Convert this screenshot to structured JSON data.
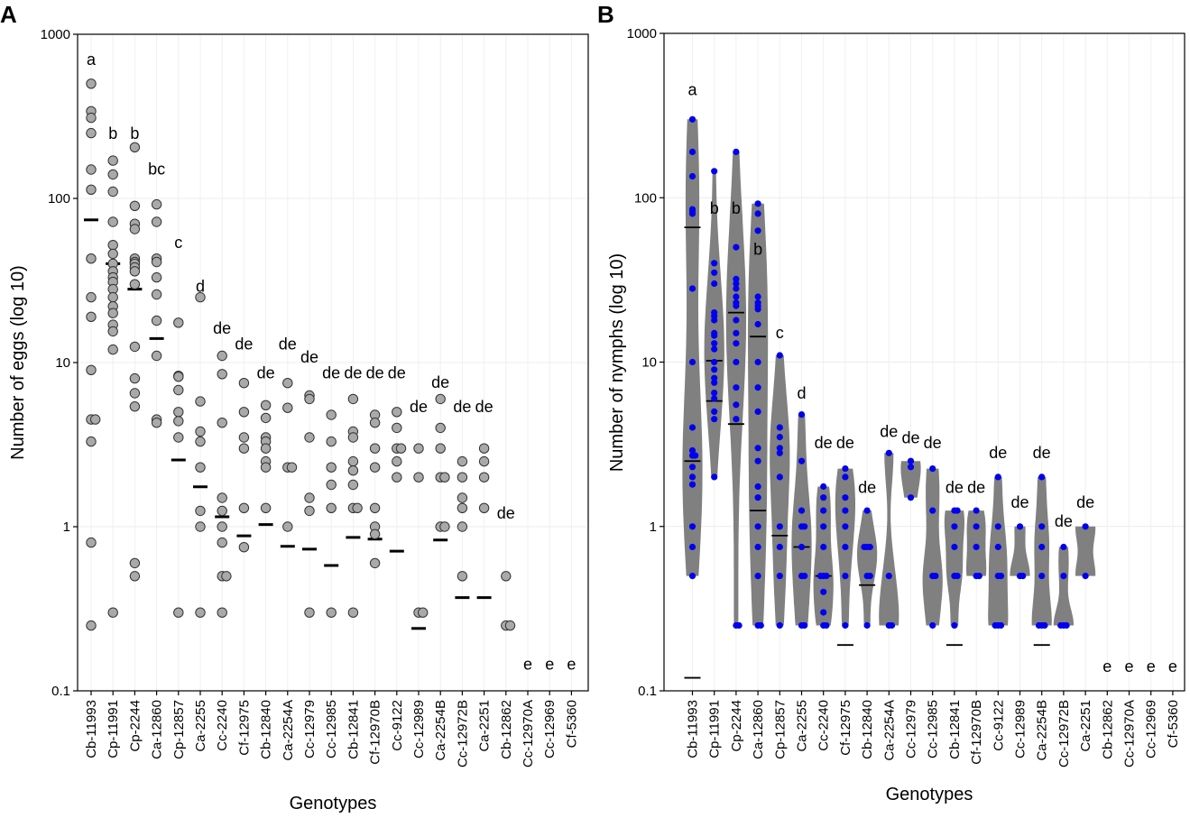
{
  "figure": {
    "panel_a_label": "A",
    "panel_b_label": "B"
  },
  "chart_data": [
    {
      "type": "scatter",
      "panel": "A",
      "ylabel": "Number of eggs (log 10)",
      "xlabel": "Genotypes",
      "yscale": "log10",
      "ylim": [
        0.1,
        1000
      ],
      "yticks": [
        {
          "v": 0.1,
          "label": "0.1"
        },
        {
          "v": 1,
          "label": "1"
        },
        {
          "v": 10,
          "label": "10"
        },
        {
          "v": 100,
          "label": "100"
        },
        {
          "v": 1000,
          "label": "1000"
        }
      ],
      "grid": true,
      "point_color": "#a9a9a9",
      "categories": [
        "Cb-11993",
        "Cp-11991",
        "Cp-2244",
        "Ca-12860",
        "Cp-12857",
        "Ca-2255",
        "Cc-2240",
        "Cf-12975",
        "Cb-12840",
        "Ca-2254A",
        "Cc-12979",
        "Cc-12985",
        "Cb-12841",
        "Cf-12970B",
        "Cc-9122",
        "Cc-12989",
        "Ca-2254B",
        "Cc-12972B",
        "Ca-2251",
        "Cb-12862",
        "Cc-12970A",
        "Cc-12969",
        "Cf-5360"
      ],
      "letters": [
        "a",
        "b",
        "b",
        "bc",
        "c",
        "d",
        "de",
        "de",
        "de",
        "de",
        "de",
        "de",
        "de",
        "de",
        "de",
        "de",
        "de",
        "de",
        "de",
        "de",
        "e",
        "e",
        "e"
      ],
      "letter_y": [
        650,
        230,
        230,
        140,
        50,
        27,
        15,
        12,
        8,
        12,
        10,
        8,
        8,
        8,
        8,
        5,
        7,
        5,
        5,
        1.12,
        0.135,
        0.135,
        0.135
      ],
      "means": [
        74,
        40,
        28,
        14,
        2.55,
        1.75,
        1.15,
        0.88,
        1.03,
        0.76,
        0.73,
        0.58,
        0.86,
        0.84,
        0.71,
        0.24,
        0.83,
        0.37,
        0.37,
        null,
        null,
        null,
        null
      ],
      "points": [
        [
          500,
          340,
          310,
          250,
          150,
          113,
          43,
          25,
          19,
          9,
          4.5,
          4.5,
          3.3,
          0.8,
          0.25
        ],
        [
          170,
          140,
          110,
          72,
          52,
          46,
          40,
          36,
          33,
          31,
          28,
          25,
          22,
          20,
          17,
          15.5,
          12,
          0.3
        ],
        [
          205,
          90,
          70,
          65,
          43,
          41,
          40,
          38,
          36,
          30,
          12.5,
          8,
          6.5,
          5.4,
          0.6,
          0.5
        ],
        [
          92,
          72,
          43,
          41,
          33,
          26,
          18,
          11,
          4.5,
          4.3
        ],
        [
          17.5,
          8.3,
          8.2,
          6.8,
          5,
          4.4,
          3.5,
          0.3
        ],
        [
          25,
          5.8,
          3.8,
          3.3,
          2.3,
          1.25,
          1,
          0.3
        ],
        [
          11,
          8.5,
          4.3,
          1.5,
          1.25,
          1,
          0.8,
          0.5,
          0.5,
          0.3
        ],
        [
          7.5,
          5,
          3.5,
          3,
          1.3,
          0.75
        ],
        [
          5.5,
          4.6,
          3.5,
          3.3,
          3,
          2.5,
          2.3,
          1.3
        ],
        [
          7.5,
          5.3,
          2.3,
          2.3,
          1
        ],
        [
          6.3,
          6,
          3.5,
          1.5,
          1.25,
          0.3
        ],
        [
          4.8,
          3.3,
          2.3,
          1.8,
          1.3,
          0.3
        ],
        [
          6,
          3.8,
          3.5,
          2.5,
          2.2,
          1.8,
          1.3,
          1.3,
          0.3
        ],
        [
          4.8,
          4.3,
          3,
          2.3,
          1.3,
          1,
          0.9,
          0.6
        ],
        [
          5,
          4,
          3,
          3,
          2.5,
          2
        ],
        [
          3,
          2,
          0.3,
          0.3
        ],
        [
          6,
          4,
          3,
          2,
          2,
          1,
          1
        ],
        [
          2.5,
          2,
          1.5,
          1.3,
          1,
          0.5
        ],
        [
          3,
          2.5,
          2,
          1.3
        ],
        [
          0.5,
          0.25,
          0.25
        ],
        [],
        [],
        []
      ]
    },
    {
      "type": "violin",
      "panel": "B",
      "ylabel": "Number of nymphs (log 10)",
      "xlabel": "Genotypes",
      "yscale": "log10",
      "ylim": [
        0.1,
        1000
      ],
      "yticks": [
        {
          "v": 0.1,
          "label": "0.1"
        },
        {
          "v": 1,
          "label": "1"
        },
        {
          "v": 10,
          "label": "10"
        },
        {
          "v": 100,
          "label": "100"
        },
        {
          "v": 1000,
          "label": "1000"
        }
      ],
      "grid": true,
      "violin_color": "#808080",
      "point_color": "#0000ee",
      "categories": [
        "Cb-11993",
        "Cp-11991",
        "Cp-2244",
        "Ca-12860",
        "Cp-12857",
        "Ca-2255",
        "Cc-2240",
        "Cf-12975",
        "Cb-12840",
        "Ca-2254A",
        "Cc-12979",
        "Cc-12985",
        "Cb-12841",
        "Cf-12970B",
        "Cc-9122",
        "Cc-12989",
        "Ca-2254B",
        "Cc-12972B",
        "Ca-2251",
        "Cb-12862",
        "Cc-12970A",
        "Cc-12969",
        "Cf-5360"
      ],
      "letters": [
        "a",
        "b",
        "b",
        "b",
        "c",
        "d",
        "de",
        "de",
        "de",
        "de",
        "de",
        "de",
        "de",
        "de",
        "de",
        "de",
        "de",
        "de",
        "de",
        "e",
        "e",
        "e",
        "e"
      ],
      "letter_y": [
        420,
        80,
        80,
        45,
        14,
        6,
        3,
        3,
        1.6,
        3.5,
        3.2,
        3,
        1.6,
        1.6,
        2.6,
        1.3,
        2.6,
        1,
        1.3,
        0.13,
        0.13,
        0.13,
        0.13
      ],
      "lines": [
        [
          66,
          2.5,
          0.12
        ],
        [
          10.2,
          5.8
        ],
        [
          20,
          4.2
        ],
        [
          14.3,
          1.25
        ],
        [
          0.88
        ],
        [
          0.75
        ],
        [
          0.5
        ],
        [
          0.19
        ],
        [
          0.44
        ],
        [],
        [],
        [],
        [
          0.19
        ],
        [],
        [],
        [],
        [
          0.19
        ],
        [],
        [],
        [],
        [],
        [],
        []
      ],
      "points": [
        [
          300,
          190,
          135,
          85,
          83,
          80,
          28,
          10,
          4,
          2.9,
          2.7,
          2.7,
          2.3,
          2,
          1.8,
          1,
          0.75,
          0.5
        ],
        [
          145,
          40,
          35,
          30,
          20,
          19,
          18,
          15,
          14.5,
          13,
          12,
          10,
          9,
          8,
          7.5,
          6.5,
          6,
          5,
          4.5,
          2
        ],
        [
          190,
          50,
          32,
          30,
          28,
          25,
          23,
          22,
          18,
          15,
          13,
          10,
          7,
          5.5,
          4.5,
          0.25,
          0.25
        ],
        [
          92,
          80,
          63,
          25,
          23,
          22,
          21,
          17,
          10,
          7,
          5,
          3,
          2.5,
          1.75,
          1.5,
          1,
          0.75,
          0.5,
          0.25,
          0.25
        ],
        [
          11,
          4,
          3.5,
          3,
          2.8,
          2,
          1,
          0.75,
          0.5,
          0.25
        ],
        [
          4.8,
          2.5,
          1.25,
          1,
          1,
          0.75,
          0.5,
          0.5,
          0.25,
          0.25
        ],
        [
          1.75,
          1.5,
          1.25,
          1,
          0.75,
          0.5,
          0.5,
          0.5,
          0.4,
          0.3,
          0.25,
          0.25
        ],
        [
          2.25,
          2,
          1.5,
          1.25,
          1,
          0.75,
          0.5,
          0.25
        ],
        [
          1.25,
          0.75,
          0.75,
          0.75,
          0.5,
          0.5,
          0.25
        ],
        [
          2.8,
          0.5,
          0.25,
          0.25
        ],
        [
          2.5,
          2.3,
          1.5
        ],
        [
          2.25,
          1.25,
          0.5,
          0.5,
          0.25
        ],
        [
          1.25,
          1.25,
          1,
          0.75,
          0.5,
          0.5,
          0.25
        ],
        [
          1.25,
          1,
          0.75,
          0.5,
          0.5
        ],
        [
          2,
          1,
          0.75,
          0.5,
          0.5,
          0.25,
          0.25,
          0.25
        ],
        [
          1,
          0.5,
          0.5
        ],
        [
          2,
          1,
          0.75,
          0.5,
          0.25,
          0.25,
          0.25
        ],
        [
          0.75,
          0.5,
          0.25,
          0.25,
          0.25
        ],
        [
          1,
          0.5
        ],
        [],
        [],
        [],
        []
      ]
    }
  ]
}
